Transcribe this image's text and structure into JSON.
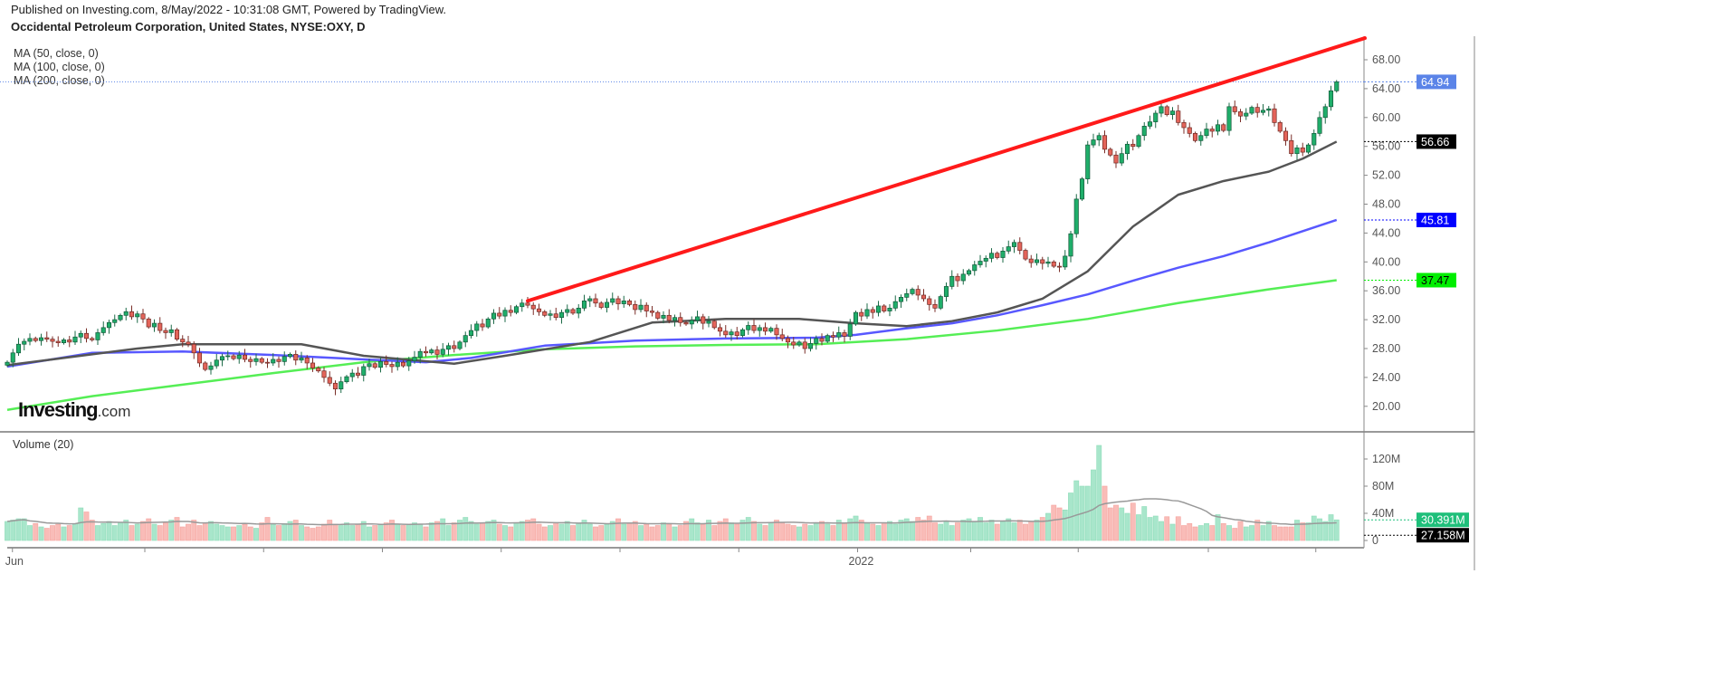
{
  "header": {
    "published": "Published on Investing.com, 8/May/2022 - 10:31:08 GMT, Powered by TradingView.",
    "title": "Occidental Petroleum Corporation, United States, NYSE:OXY, D"
  },
  "indicators": [
    "MA (50, close, 0)",
    "MA (100, close, 0)",
    "MA (200, close, 0)"
  ],
  "volume_title": "Volume (20)",
  "logo": {
    "main": "Investing",
    "suffix": ".com"
  },
  "chart_data": {
    "type": "candlestick",
    "interval": "D",
    "x_labels": [
      "Jun",
      "2022"
    ],
    "price_axis": {
      "ticks": [
        20,
        24,
        28,
        32,
        36,
        40,
        44,
        48,
        52,
        56,
        60,
        64,
        68
      ],
      "range": [
        17,
        71
      ]
    },
    "volume_axis": {
      "ticks": [
        "0",
        "40M",
        "80M",
        "120M"
      ],
      "range_millions": [
        0,
        135
      ]
    },
    "last_price": 64.94,
    "last_labels": {
      "price": "64.94",
      "ma50": "56.66",
      "ma100": "45.81",
      "ma200": "37.47",
      "volume": "30.391M",
      "volume_ma": "27.158M"
    },
    "colors": {
      "up": "#1fae6a",
      "down": "#e4645a",
      "vol_up": "#a8e6cb",
      "vol_down": "#f9bcb8",
      "ma50": "#555555",
      "ma100": "#5858ff",
      "ma200": "#55ee55",
      "trendline": "#ff1a1a",
      "last_price": "#5b84e8"
    },
    "closes": [
      26.1,
      27.4,
      28.6,
      29.0,
      29.4,
      29.1,
      29.5,
      29.3,
      29.0,
      28.8,
      29.2,
      28.9,
      29.6,
      30.1,
      29.4,
      29.2,
      30.2,
      30.9,
      31.6,
      32.0,
      32.6,
      33.1,
      32.4,
      32.8,
      32.1,
      31.0,
      31.5,
      30.5,
      30.2,
      30.6,
      29.3,
      28.9,
      28.6,
      27.4,
      26.0,
      25.1,
      25.6,
      26.4,
      26.9,
      27.0,
      26.6,
      27.1,
      26.5,
      26.2,
      26.6,
      26.1,
      26.0,
      26.5,
      26.2,
      26.9,
      27.2,
      26.4,
      26.7,
      26.0,
      25.3,
      24.9,
      24.0,
      23.2,
      22.4,
      23.4,
      24.1,
      24.6,
      24.3,
      25.5,
      25.9,
      25.4,
      26.2,
      25.8,
      25.5,
      26.1,
      25.6,
      26.3,
      26.8,
      27.6,
      27.4,
      27.8,
      27.2,
      27.9,
      28.4,
      28.0,
      28.9,
      29.8,
      30.5,
      31.4,
      31.0,
      32.1,
      32.9,
      32.5,
      33.3,
      33.0,
      33.8,
      34.3,
      34.0,
      33.5,
      33.1,
      32.6,
      32.8,
      32.3,
      33.0,
      33.4,
      32.9,
      33.6,
      34.6,
      34.9,
      34.3,
      33.7,
      34.4,
      34.9,
      34.2,
      34.6,
      34.1,
      33.4,
      34.0,
      33.2,
      33.0,
      32.2,
      32.6,
      31.9,
      32.3,
      31.6,
      31.4,
      31.9,
      32.4,
      31.5,
      31.8,
      30.9,
      30.4,
      29.9,
      30.3,
      29.8,
      30.6,
      31.2,
      30.5,
      30.9,
      30.4,
      30.8,
      29.9,
      29.4,
      28.9,
      28.5,
      28.9,
      28.0,
      28.7,
      29.4,
      29.0,
      29.8,
      29.6,
      30.2,
      29.7,
      31.4,
      33.0,
      32.5,
      33.4,
      33.0,
      33.9,
      33.2,
      33.6,
      34.5,
      35.1,
      35.6,
      36.2,
      35.4,
      34.9,
      34.1,
      33.6,
      35.2,
      36.6,
      38.0,
      37.4,
      38.3,
      38.8,
      39.6,
      40.1,
      40.5,
      41.2,
      40.6,
      41.5,
      42.1,
      42.7,
      41.6,
      40.4,
      39.9,
      40.3,
      39.8,
      40.0,
      39.4,
      39.3,
      40.8,
      43.9,
      48.7,
      51.5,
      56.2,
      56.9,
      57.5,
      55.6,
      54.8,
      53.7,
      55.0,
      56.3,
      56.0,
      57.5,
      58.8,
      59.4,
      60.6,
      61.5,
      60.4,
      60.9,
      59.3,
      58.6,
      57.8,
      56.8,
      57.5,
      58.4,
      58.1,
      59.0,
      58.2,
      61.5,
      60.8,
      60.2,
      60.6,
      61.4,
      60.7,
      61.0,
      61.2,
      59.3,
      58.1,
      56.8,
      55.0,
      55.8,
      55.2,
      56.2,
      57.8,
      60.0,
      61.5,
      63.7,
      64.94
    ],
    "volume_millions": [
      28,
      30,
      32,
      32,
      22,
      25,
      20,
      18,
      22,
      24,
      20,
      22,
      25,
      48,
      42,
      30,
      22,
      25,
      28,
      22,
      26,
      30,
      22,
      24,
      28,
      32,
      24,
      22,
      26,
      30,
      34,
      20,
      24,
      30,
      22,
      26,
      28,
      24,
      22,
      20,
      20,
      22,
      24,
      20,
      18,
      26,
      34,
      24,
      22,
      25,
      28,
      30,
      22,
      20,
      18,
      20,
      24,
      30,
      24,
      22,
      26,
      22,
      24,
      28,
      20,
      22,
      24,
      26,
      30,
      24,
      22,
      24,
      26,
      24,
      20,
      26,
      28,
      32,
      22,
      26,
      30,
      34,
      28,
      24,
      26,
      28,
      30,
      24,
      22,
      20,
      26,
      28,
      30,
      32,
      24,
      20,
      22,
      26,
      24,
      28,
      22,
      26,
      30,
      24,
      20,
      22,
      24,
      28,
      32,
      24,
      26,
      28,
      22,
      24,
      20,
      22,
      26,
      24,
      20,
      22,
      28,
      32,
      26,
      24,
      30,
      22,
      28,
      32,
      26,
      24,
      30,
      34,
      28,
      24,
      22,
      26,
      30,
      26,
      24,
      22,
      20,
      24,
      22,
      26,
      28,
      24,
      22,
      30,
      26,
      32,
      36,
      30,
      26,
      24,
      22,
      26,
      28,
      24,
      30,
      32,
      28,
      34,
      30,
      36,
      26,
      24,
      28,
      22,
      26,
      30,
      32,
      28,
      34,
      26,
      30,
      24,
      28,
      32,
      26,
      30,
      24,
      28,
      30,
      34,
      40,
      52,
      48,
      45,
      70,
      88,
      80,
      80,
      104,
      140,
      80,
      48,
      52,
      48,
      40,
      55,
      38,
      50,
      34,
      36,
      28,
      35,
      24,
      35,
      22,
      25,
      20,
      22,
      25,
      22,
      38,
      25,
      22,
      18,
      28,
      20,
      22,
      30,
      22,
      28,
      22,
      20,
      20,
      20,
      30,
      26,
      26,
      36,
      32,
      28,
      38,
      30.391
    ],
    "moving_averages": {
      "ma50": {
        "bar_index": [
          0,
          23,
          31,
          52,
          63,
          79,
          88,
          103,
          114,
          127,
          140,
          150,
          159,
          167,
          175,
          183,
          191,
          199,
          207,
          215,
          223,
          229,
          235
        ],
        "values": [
          25.7,
          28.0,
          28.6,
          28.6,
          27.0,
          25.9,
          27.0,
          28.9,
          31.6,
          32.1,
          32.1,
          31.5,
          31.1,
          31.8,
          33.0,
          34.9,
          38.7,
          44.9,
          49.3,
          51.2,
          52.5,
          54.3,
          56.66
        ]
      },
      "ma100": {
        "bar_index": [
          0,
          15,
          31,
          47,
          63,
          74,
          82,
          95,
          111,
          127,
          143,
          150,
          159,
          167,
          175,
          183,
          191,
          199,
          207,
          215,
          223,
          235
        ],
        "values": [
          25.5,
          27.4,
          27.6,
          27.1,
          26.5,
          26.1,
          26.7,
          28.4,
          29.1,
          29.4,
          29.5,
          29.9,
          30.8,
          31.5,
          32.6,
          34.0,
          35.5,
          37.4,
          39.2,
          40.8,
          42.7,
          45.81
        ]
      },
      "ma200": {
        "bar_index": [
          0,
          15,
          31,
          47,
          63,
          79,
          95,
          111,
          127,
          143,
          159,
          175,
          191,
          207,
          223,
          235
        ],
        "values": [
          19.5,
          21.4,
          23.0,
          24.6,
          26.1,
          27.1,
          27.9,
          28.3,
          28.5,
          28.6,
          29.3,
          30.5,
          32.1,
          34.3,
          36.2,
          37.47
        ]
      }
    },
    "trendline": {
      "from": {
        "bar_index": 92,
        "price": 34.6
      },
      "to": {
        "bar_index": 240,
        "price": 71.0
      }
    }
  }
}
